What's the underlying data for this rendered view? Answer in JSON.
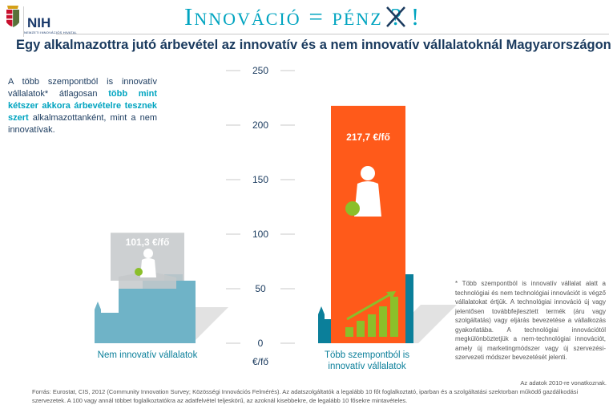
{
  "logo": {
    "org_text": "NEMZETI INNOVÁCIÓS HIVATAL",
    "mark": "NIH"
  },
  "header": {
    "title_main": "Innováció = pénz",
    "title_mark": "?",
    "title_end": "!"
  },
  "intro": {
    "part1": "A több szempontból is innovatív vállalatok* átlagosan ",
    "highlight": "több mint kétszer akkora árbevételre tesznek szert",
    "part2": " alkalmazottanként, mint a nem innovatívak."
  },
  "footnote": "* Több szempontból is innovatív vállalat alatt a technológiai és nem technológiai innovációt is végző vállalatokat értjük. A technológiai innováció új vagy jelentősen továbbfejlesztett termék (áru vagy szolgáltatás) vagy eljárás bevezetése a vállalkozás gyakorlatába. A technológiai innovációtól megkülönböztetjük a nem-technológiai innovációt, amely új marketingmódszer vagy új szervezési-szervezeti módszer bevezetését jelenti.",
  "data_year": "Az adatok 2010-re vonatkoznak.",
  "source": "Forrás: Eurostat, CIS, 2012 (Community Innovation Survey; Közösségi Innovációs Felmérés). Az adatszolgáltatók a legalább 10 főt foglalkoztató, iparban és a szolgáltatási szektorban működő gazdálkodási szervezetek. A 100 vagy annál többet foglalkoztatókra az adatfelvétel teljeskörű, az azoknál kisebbekre, de legalább 10 fősekre mintavételes.",
  "colors": {
    "teal_dark": "#0b7f9a",
    "teal_light": "#6fb3c7",
    "orange": "#ff5a1a",
    "green": "#8bbf2a",
    "navy": "#1a3a5e",
    "gray_bar": "#c4c8ca"
  },
  "chart_data": {
    "type": "bar",
    "title": "Egy alkalmazottra jutó árbevétel az innovatív és a nem innovatív vállalatoknál Magyarországon",
    "ylabel": "€/fő",
    "ylim": [
      0,
      250
    ],
    "yticks": [
      0,
      50,
      100,
      150,
      200,
      250
    ],
    "categories": [
      "Nem innovatív vállalatok",
      "Több szempontból is innovatív vállalatok"
    ],
    "category_lines": [
      [
        "Nem innovatív vállalatok"
      ],
      [
        "Több szempontból is",
        "innovatív vállalatok"
      ]
    ],
    "values": [
      101.3,
      217.7
    ],
    "value_labels": [
      "101,3 €/fő",
      "217,7 €/fő"
    ],
    "grid": true
  }
}
